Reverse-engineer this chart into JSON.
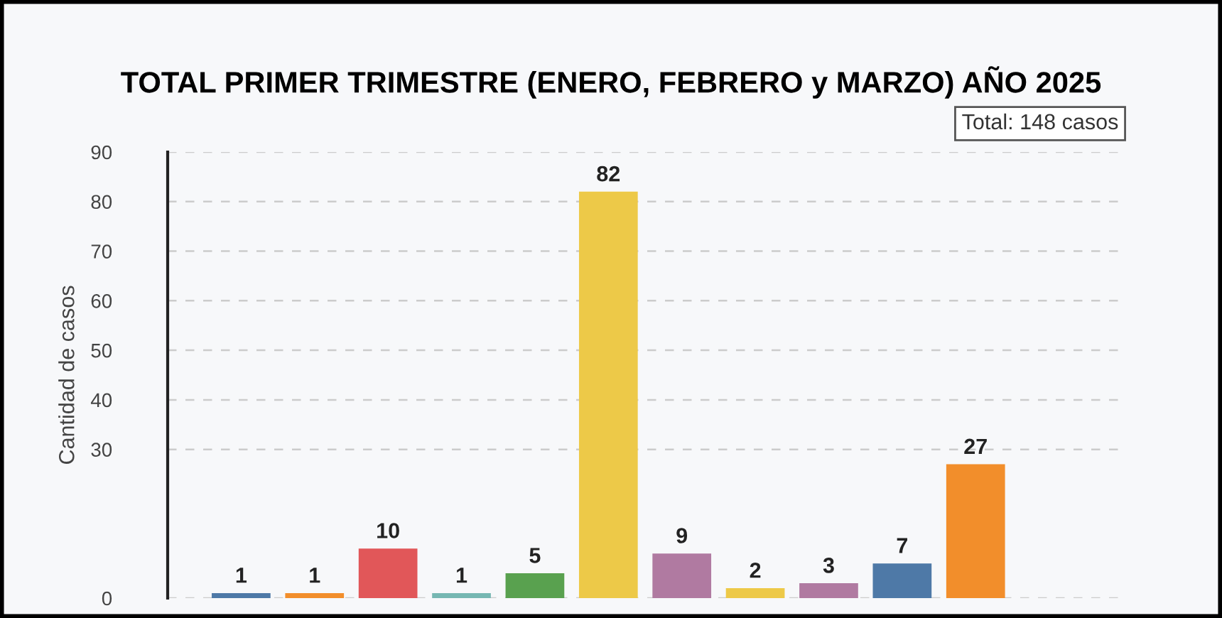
{
  "chart_data": {
    "type": "bar",
    "title": "TOTAL PRIMER TRIMESTRE (ENERO, FEBRERO y MARZO) AÑO 2025",
    "ylabel": "Cantidad de casos",
    "annotations": [
      "Total: 148 casos"
    ],
    "categories": [
      null,
      null,
      null,
      null,
      null,
      null,
      null,
      null,
      null,
      null,
      null
    ],
    "values": [
      1,
      1,
      10,
      1,
      5,
      82,
      9,
      2,
      3,
      7,
      27
    ],
    "colors": [
      "#4e79a7",
      "#f28e2b",
      "#e15759",
      "#76b7b2",
      "#59a14f",
      "#edc948",
      "#b07aa1",
      "#edc948",
      "#b07aa1",
      "#4e79a7",
      "#f28e2b"
    ],
    "ylim": [
      0,
      90
    ],
    "yticks": [
      0,
      30,
      40,
      50,
      60,
      70,
      80,
      90
    ],
    "grid": "y",
    "data_labels": true
  }
}
